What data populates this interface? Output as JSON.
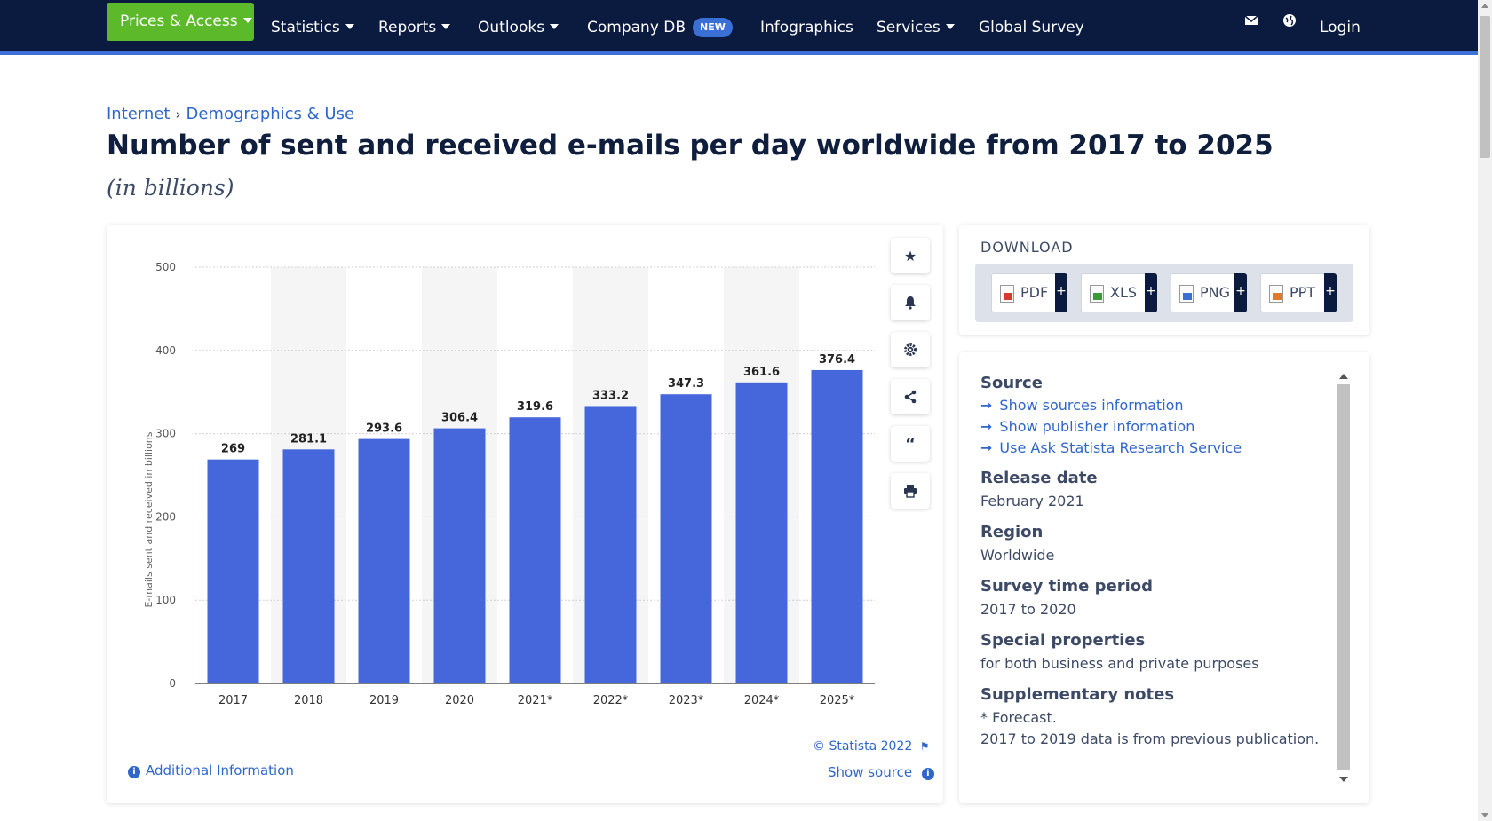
{
  "nav": {
    "prices": "Prices & Access",
    "statistics": "Statistics",
    "reports": "Reports",
    "outlooks": "Outlooks",
    "company_db": "Company DB",
    "company_db_badge": "NEW",
    "infographics": "Infographics",
    "services": "Services",
    "global_survey": "Global Survey",
    "login": "Login",
    "accent": "#5cba2a",
    "bar_bg": "#0b1a3f"
  },
  "breadcrumb": {
    "parent": "Internet",
    "current": "Demographics & Use"
  },
  "page": {
    "title": "Number of sent and received e-mails per day worldwide from 2017 to 2025",
    "subtitle": "(in billions)"
  },
  "chart_data": {
    "type": "bar",
    "categories": [
      "2017",
      "2018",
      "2019",
      "2020",
      "2021*",
      "2022*",
      "2023*",
      "2024*",
      "2025*"
    ],
    "values": [
      269,
      281.1,
      293.6,
      306.4,
      319.6,
      333.2,
      347.3,
      361.6,
      376.4
    ],
    "value_labels": [
      "269",
      "281.1",
      "293.6",
      "306.4",
      "319.6",
      "333.2",
      "347.3",
      "361.6",
      "376.4"
    ],
    "ylabel": "E-mails sent and received in billions",
    "ylim": [
      0,
      500
    ],
    "yticks": [
      "0",
      "100",
      "200",
      "300",
      "400",
      "500"
    ],
    "bar_color": "#4667db",
    "grid": true
  },
  "chart_footer": {
    "copyright": "© Statista 2022",
    "show_source": "Show source",
    "additional_info": "Additional Information"
  },
  "download": {
    "title": "DOWNLOAD",
    "buttons": [
      "PDF",
      "XLS",
      "PNG",
      "PPT"
    ]
  },
  "info": {
    "source_heading": "Source",
    "links": [
      "Show sources information",
      "Show publisher information",
      "Use Ask Statista Research Service"
    ],
    "release_heading": "Release date",
    "release_value": "February 2021",
    "region_heading": "Region",
    "region_value": "Worldwide",
    "survey_heading": "Survey time period",
    "survey_value": "2017 to 2020",
    "special_heading": "Special properties",
    "special_value": "for both business and private purposes",
    "notes_heading": "Supplementary notes",
    "notes_line1": "* Forecast.",
    "notes_line2": "2017 to 2019 data is from previous publication."
  }
}
